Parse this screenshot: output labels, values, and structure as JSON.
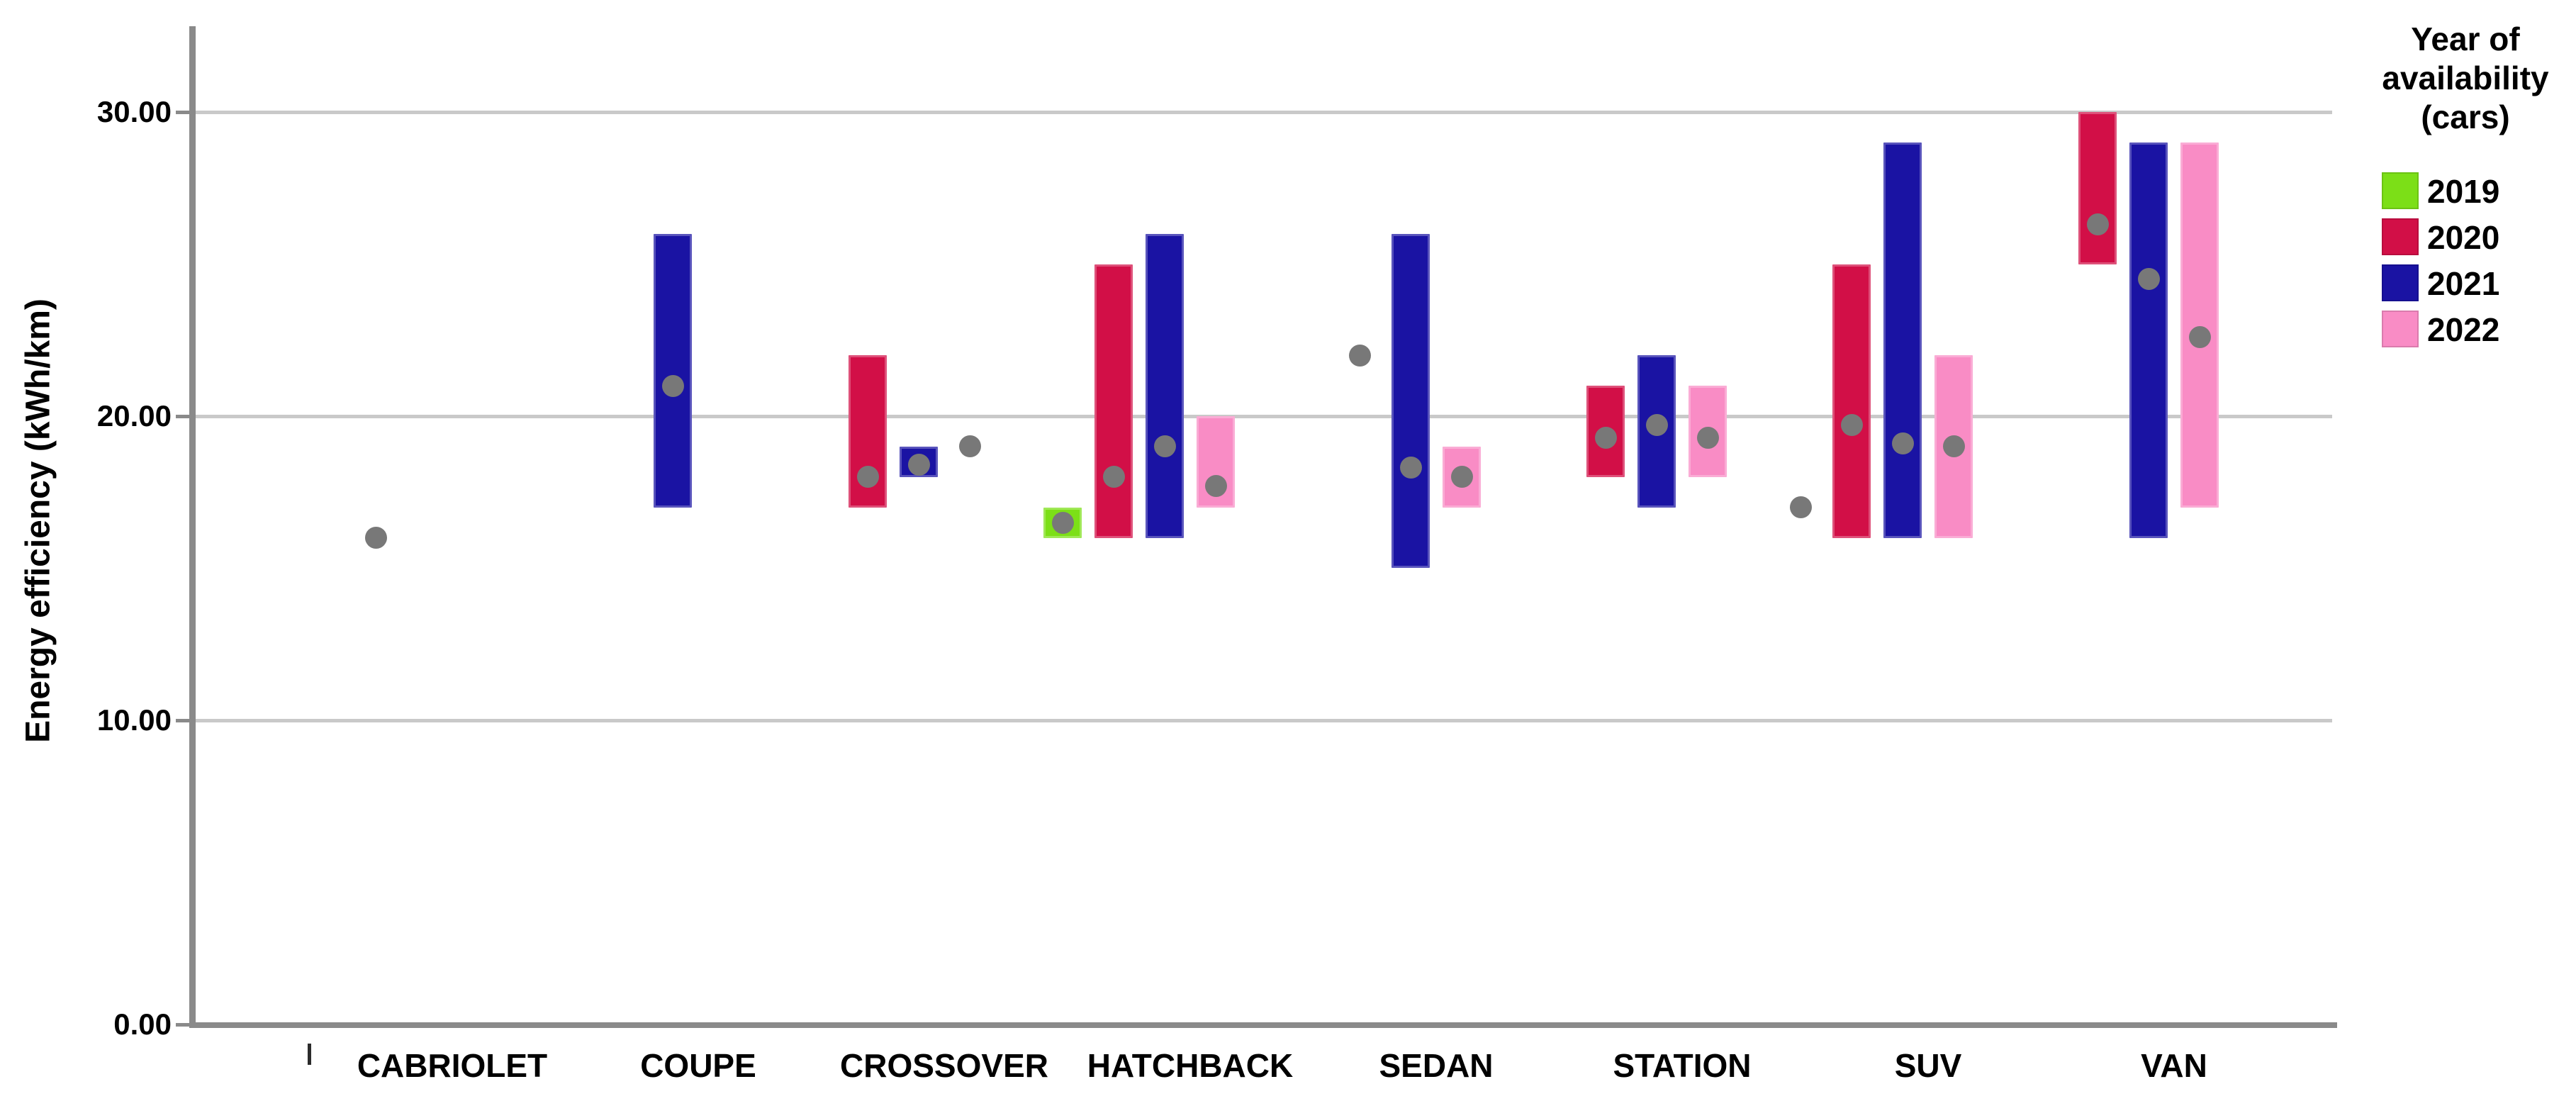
{
  "chart_data": {
    "type": "range-bar",
    "title": "",
    "ylabel": "Energy efficiency (kWh/km)",
    "xlabel": "",
    "ylim": [
      0,
      32.8
    ],
    "grid": "horizontal gridlines at each labeled y tick",
    "y_ticks": [
      {
        "value": 0,
        "label": "0.00"
      },
      {
        "value": 10,
        "label": "10.00"
      },
      {
        "value": 20,
        "label": "20.00"
      },
      {
        "value": 30,
        "label": "30.00"
      }
    ],
    "categories": [
      "CABRIOLET",
      "COUPE",
      "CROSSOVER",
      "HATCHBACK",
      "SEDAN",
      "STATION",
      "SUV",
      "VAN"
    ],
    "years": [
      "2019",
      "2020",
      "2021",
      "2022"
    ],
    "legend": {
      "title_lines": [
        "Year of",
        "availability",
        "(cars)"
      ],
      "position": "top-right",
      "entries": [
        {
          "label": "2019",
          "color": "#7CDF17"
        },
        {
          "label": "2020",
          "color": "#D20F47"
        },
        {
          "label": "2021",
          "color": "#1A13A3"
        },
        {
          "label": "2022",
          "color": "#F98CC5"
        }
      ]
    },
    "points": [
      {
        "category": "CABRIOLET",
        "year": "2020",
        "min": 16,
        "max": 16,
        "marker": 16.0
      },
      {
        "category": "COUPE",
        "year": "2021",
        "min": 17,
        "max": 26,
        "marker": 21.0
      },
      {
        "category": "CROSSOVER",
        "year": "2020",
        "min": 17,
        "max": 22,
        "marker": 18.0
      },
      {
        "category": "CROSSOVER",
        "year": "2021",
        "min": 18,
        "max": 19,
        "marker": 18.4
      },
      {
        "category": "CROSSOVER",
        "year": "2022",
        "min": 19,
        "max": 19,
        "marker": 19.0
      },
      {
        "category": "HATCHBACK",
        "year": "2019",
        "min": 16,
        "max": 17,
        "marker": 16.5
      },
      {
        "category": "HATCHBACK",
        "year": "2020",
        "min": 16,
        "max": 25,
        "marker": 18.0
      },
      {
        "category": "HATCHBACK",
        "year": "2021",
        "min": 16,
        "max": 26,
        "marker": 19.0
      },
      {
        "category": "HATCHBACK",
        "year": "2022",
        "min": 17,
        "max": 20,
        "marker": 17.7
      },
      {
        "category": "SEDAN",
        "year": "2020",
        "min": 22,
        "max": 22,
        "marker": 22.0
      },
      {
        "category": "SEDAN",
        "year": "2021",
        "min": 15,
        "max": 26,
        "marker": 18.3
      },
      {
        "category": "SEDAN",
        "year": "2022",
        "min": 17,
        "max": 19,
        "marker": 18.0
      },
      {
        "category": "STATION",
        "year": "2020",
        "min": 18,
        "max": 21,
        "marker": 19.3
      },
      {
        "category": "STATION",
        "year": "2021",
        "min": 17,
        "max": 22,
        "marker": 19.7
      },
      {
        "category": "STATION",
        "year": "2022",
        "min": 18,
        "max": 21,
        "marker": 19.3
      },
      {
        "category": "SUV",
        "year": "2019",
        "min": 17,
        "max": 17,
        "marker": 17.0
      },
      {
        "category": "SUV",
        "year": "2020",
        "min": 16,
        "max": 25,
        "marker": 19.7
      },
      {
        "category": "SUV",
        "year": "2021",
        "min": 16,
        "max": 29,
        "marker": 19.1
      },
      {
        "category": "SUV",
        "year": "2022",
        "min": 16,
        "max": 22,
        "marker": 19.0
      },
      {
        "category": "VAN",
        "year": "2020",
        "min": 25,
        "max": 30,
        "marker": 26.3
      },
      {
        "category": "VAN",
        "year": "2021",
        "min": 16,
        "max": 29,
        "marker": 24.5
      },
      {
        "category": "VAN",
        "year": "2022",
        "min": 17,
        "max": 29,
        "marker": 22.6
      }
    ],
    "marker_color": "#787878",
    "colors": {
      "axis": "#8A8A8A",
      "gridline": "#C9C9C9",
      "text": "#000000",
      "background": "#FFFFFF"
    }
  }
}
